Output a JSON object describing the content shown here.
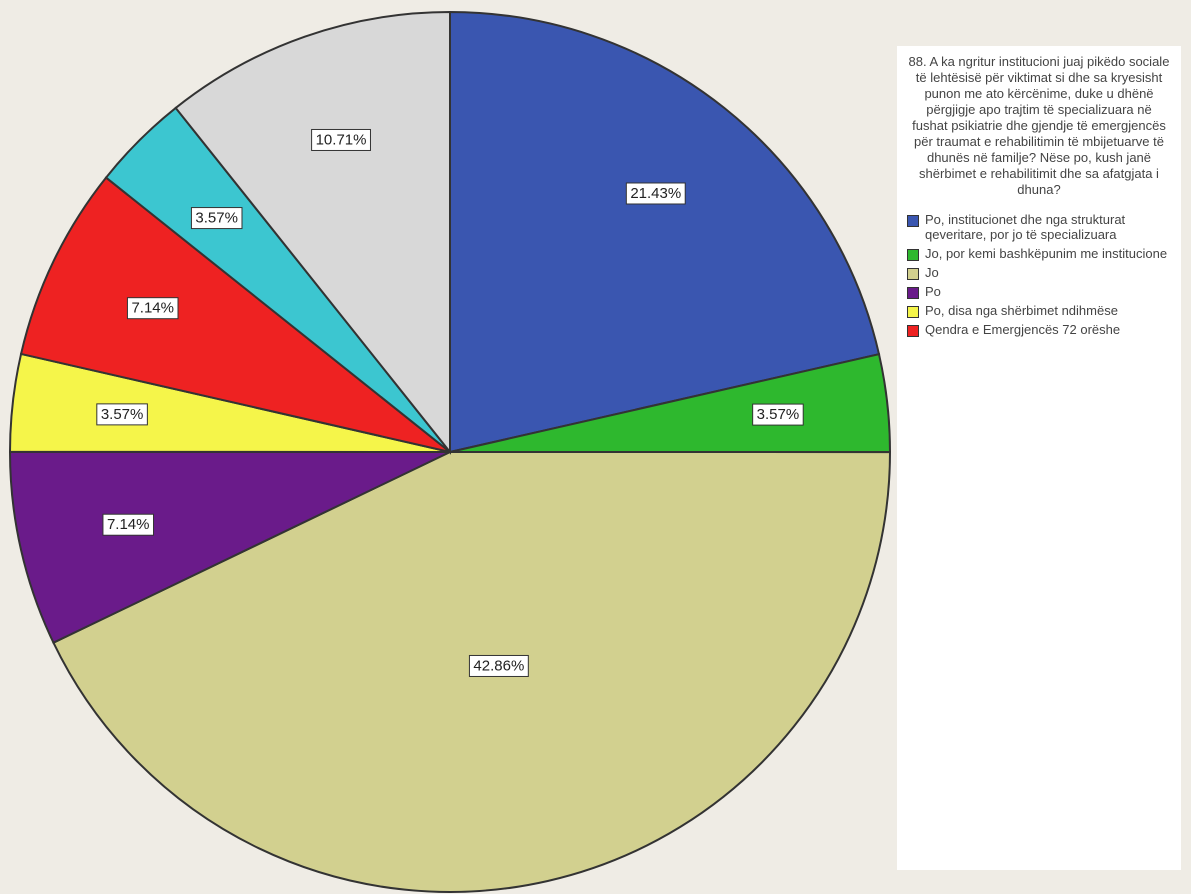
{
  "chart_data": {
    "type": "pie",
    "title": "88. A ka ngritur institucioni juaj pikëdo sociale të lehtësisë për viktimat si dhe sa kryesisht punon me ato kërcënime, duke u dhënë përgjigje apo trajtim të specializuara në fushat psikiatrie dhe gjendje të emergjencës për traumat e rehabilitimin të mbijetuarve të dhunës në familje? Nëse po, kush janë shërbimet e rehabilitimit dhe sa afatgjata i dhuna?",
    "categories": [
      "Po, institucionet dhe nga strukturat qeveritare, por jo të specializuara",
      "Jo, por kemi bashkëpunim me institucione",
      "Jo",
      "Po",
      "Po, disa nga shërbimet ndihmëse",
      "Qendra e Emergjencës 72 orëshe",
      null,
      null
    ],
    "values": [
      21.43,
      3.57,
      42.86,
      7.14,
      3.57,
      7.14,
      3.57,
      10.71
    ],
    "value_labels": [
      "21.43%",
      "3.57%",
      "42.86%",
      "7.14%",
      "3.57%",
      "7.14%",
      "3.57%",
      "10.71%"
    ],
    "colors": [
      "#3a56b0",
      "#2eb82e",
      "#d2d08f",
      "#6a1b8a",
      "#f5f54a",
      "#ee2222",
      "#3cc6d0",
      "#d8d8d8"
    ]
  }
}
